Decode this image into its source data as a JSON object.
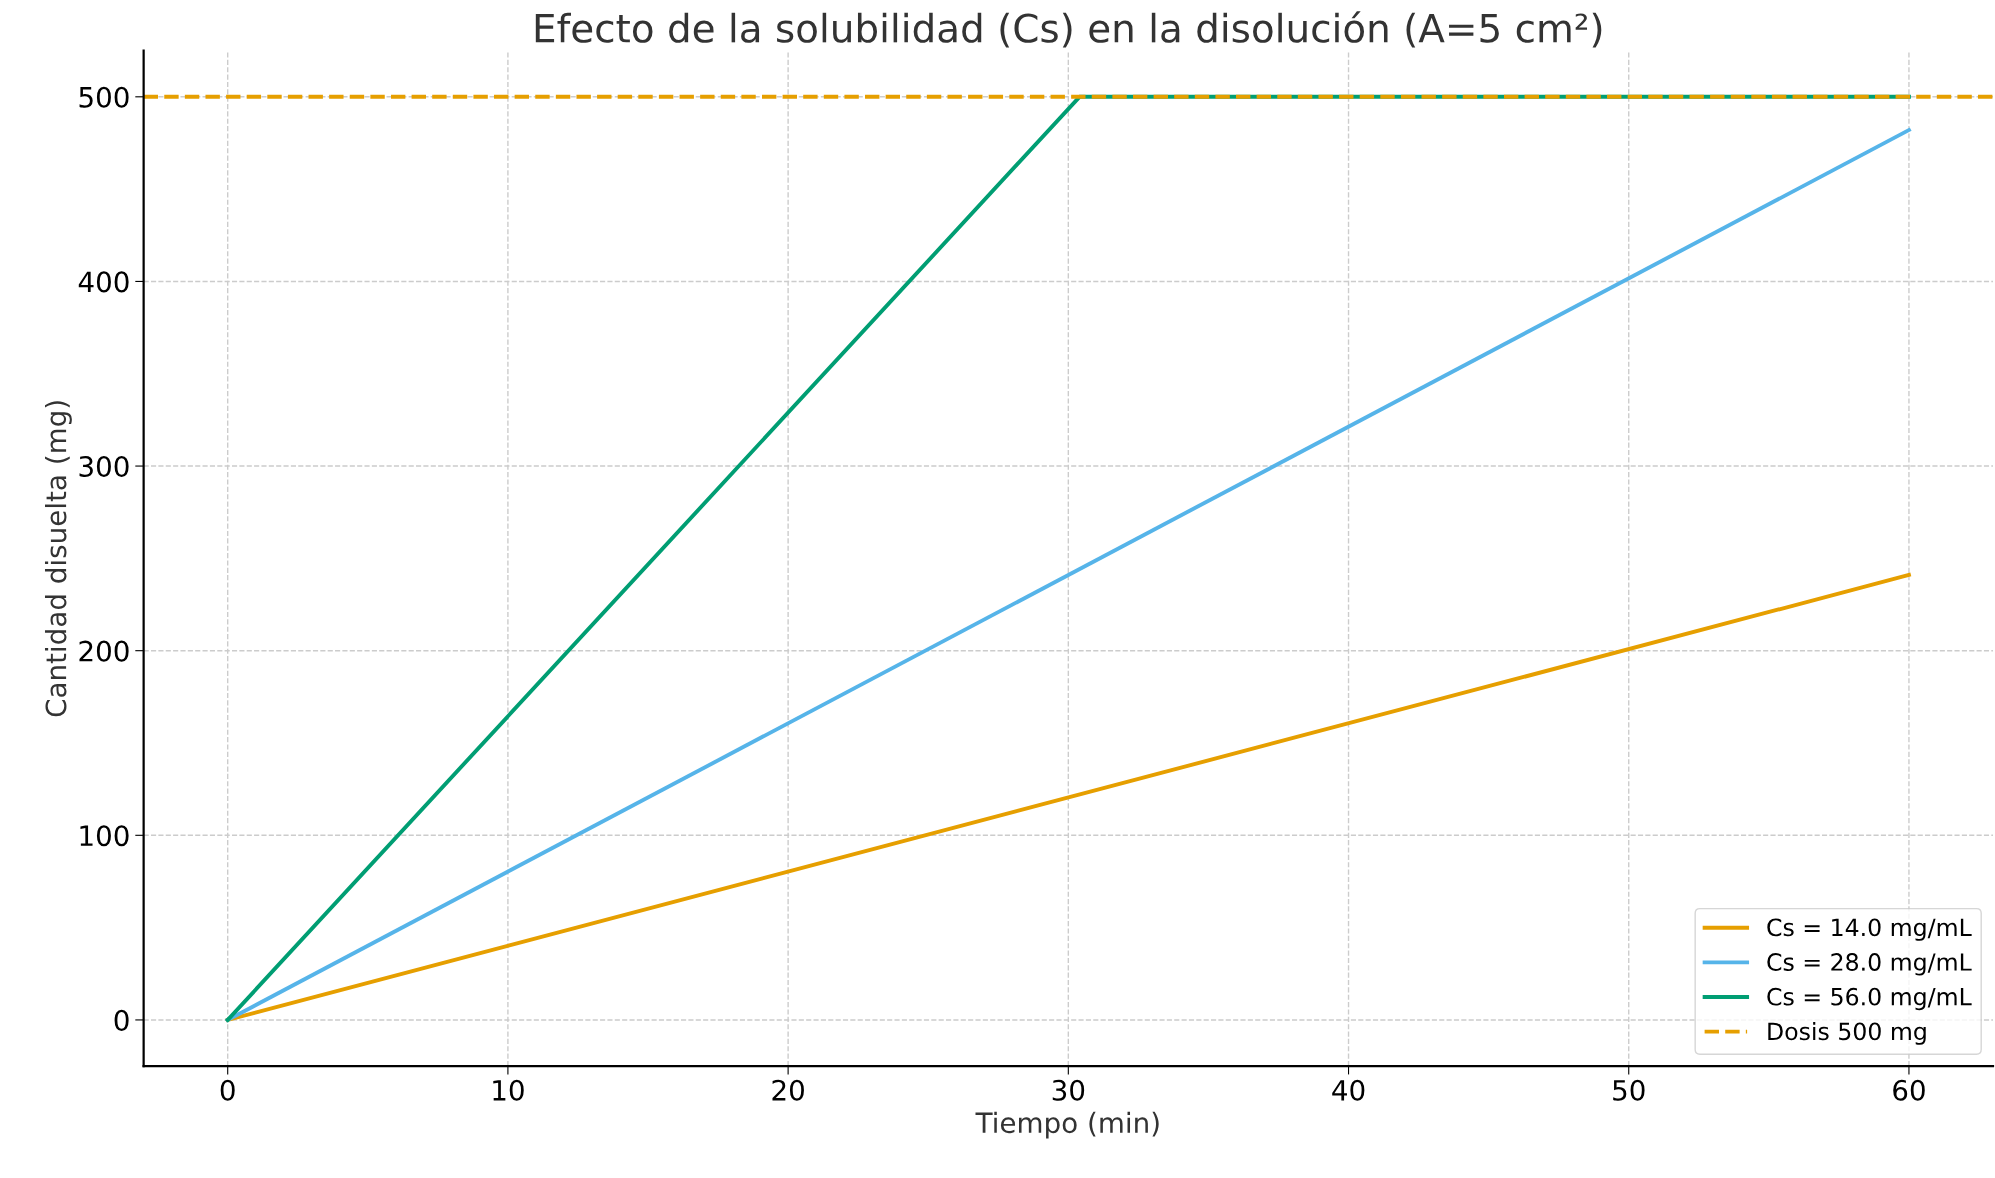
{
  "chart_data": {
    "type": "line",
    "title": "Efecto de la solubilidad (Cs) en la disolución (A=5 cm²)",
    "xlabel": "Tiempo (min)",
    "ylabel": "Cantidad disuelta (mg)",
    "series": [
      {
        "name": "Cs = 14.0 mg/mL",
        "color": "#e69f00",
        "x": [
          0,
          60
        ],
        "values": [
          0,
          241
        ]
      },
      {
        "name": "Cs = 28.0 mg/mL",
        "color": "#56b4e9",
        "x": [
          0,
          60
        ],
        "values": [
          0,
          482
        ]
      },
      {
        "name": "Cs = 56.0 mg/mL",
        "color": "#009e73",
        "x": [
          0,
          30.4,
          60
        ],
        "values": [
          0,
          500,
          500
        ]
      }
    ],
    "ref_lines": [
      {
        "axis": "y",
        "value": 500,
        "label": "Dosis 500 mg",
        "color": "#e69f00",
        "line_style": "dashed"
      }
    ],
    "xlim": [
      -3,
      63
    ],
    "ylim": [
      -25,
      525
    ],
    "xticks": [
      0,
      10,
      20,
      30,
      40,
      50,
      60
    ],
    "yticks": [
      0,
      100,
      200,
      300,
      400,
      500
    ],
    "grid": true,
    "legend": "bottom right",
    "marker": "none",
    "line_style": "solid"
  }
}
